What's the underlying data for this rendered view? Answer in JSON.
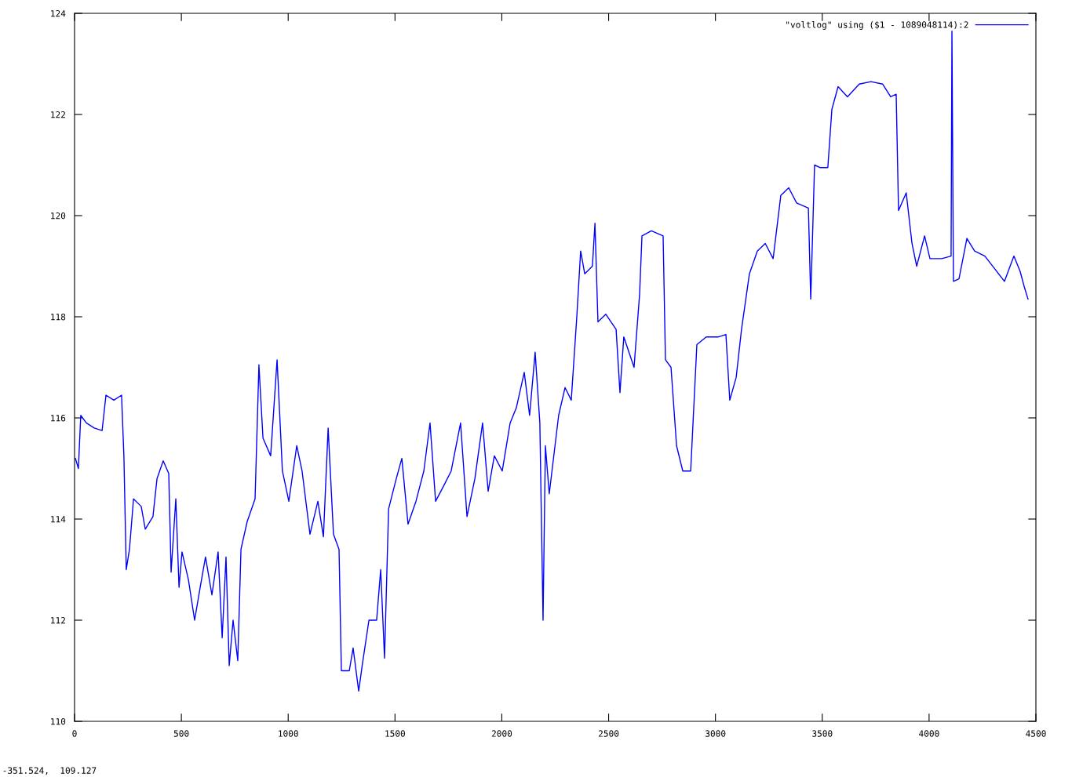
{
  "chart_data": {
    "type": "line",
    "xlim": [
      0,
      4500
    ],
    "ylim": [
      110,
      124
    ],
    "xticks": [
      0,
      500,
      1000,
      1500,
      2000,
      2500,
      3000,
      3500,
      4000,
      4500
    ],
    "yticks": [
      110,
      112,
      114,
      116,
      118,
      120,
      122,
      124
    ],
    "grid": false,
    "legend": "top right",
    "marker": "none",
    "line_style": "solid",
    "annotations": [
      "-351.524,  109.127"
    ],
    "series": [
      {
        "name": "\"voltlog\" using ($1 - 1089048114):2",
        "color": "#0000ff",
        "x": [
          4,
          18,
          29,
          55,
          92,
          129,
          147,
          184,
          220,
          231,
          242,
          257,
          276,
          312,
          331,
          367,
          386,
          415,
          441,
          452,
          474,
          489,
          503,
          533,
          562,
          588,
          613,
          643,
          672,
          691,
          709,
          724,
          742,
          764,
          779,
          808,
          845,
          863,
          882,
          918,
          948,
          973,
          1003,
          1040,
          1065,
          1102,
          1139,
          1165,
          1187,
          1212,
          1238,
          1249,
          1286,
          1304,
          1330,
          1348,
          1378,
          1414,
          1433,
          1451,
          1470,
          1506,
          1532,
          1561,
          1598,
          1635,
          1664,
          1690,
          1727,
          1763,
          1807,
          1837,
          1874,
          1910,
          1936,
          1965,
          2002,
          2039,
          2068,
          2105,
          2130,
          2156,
          2178,
          2193,
          2204,
          2222,
          2266,
          2296,
          2325,
          2351,
          2369,
          2388,
          2424,
          2436,
          2450,
          2487,
          2535,
          2553,
          2571,
          2619,
          2645,
          2656,
          2700,
          2755,
          2766,
          2792,
          2818,
          2847,
          2884,
          2913,
          2957,
          3012,
          3049,
          3067,
          3097,
          3122,
          3159,
          3196,
          3233,
          3270,
          3306,
          3343,
          3380,
          3435,
          3446,
          3464,
          3489,
          3526,
          3545,
          3574,
          3618,
          3673,
          3728,
          3783,
          3820,
          3846,
          3857,
          3893,
          3920,
          3942,
          3979,
          4004,
          4059,
          4103,
          4107,
          4114,
          4140,
          4177,
          4213,
          4261,
          4316,
          4353,
          4397,
          4426,
          4445,
          4463
        ],
        "values": [
          115.2,
          115.0,
          116.05,
          115.9,
          115.8,
          115.75,
          116.45,
          116.35,
          116.45,
          115.25,
          113.0,
          113.4,
          114.4,
          114.25,
          113.8,
          114.05,
          114.8,
          115.15,
          114.9,
          112.95,
          114.4,
          112.65,
          113.35,
          112.8,
          112.0,
          112.65,
          113.25,
          112.5,
          113.35,
          111.65,
          113.25,
          111.1,
          112.0,
          111.2,
          113.4,
          113.95,
          114.4,
          117.05,
          115.6,
          115.25,
          117.15,
          114.95,
          114.35,
          115.45,
          114.95,
          113.7,
          114.35,
          113.65,
          115.8,
          113.7,
          113.4,
          111.0,
          111.0,
          111.45,
          110.6,
          111.15,
          112.0,
          112.0,
          113.0,
          111.25,
          114.2,
          114.8,
          115.2,
          113.9,
          114.35,
          114.95,
          115.9,
          114.35,
          114.65,
          114.95,
          115.9,
          114.05,
          114.8,
          115.9,
          114.55,
          115.25,
          114.95,
          115.9,
          116.2,
          116.9,
          116.05,
          117.3,
          115.9,
          112.0,
          115.45,
          114.5,
          116.05,
          116.6,
          116.35,
          118.0,
          119.3,
          118.85,
          119.0,
          119.85,
          117.9,
          118.05,
          117.75,
          116.5,
          117.6,
          117.0,
          118.45,
          119.6,
          119.7,
          119.6,
          117.15,
          117.0,
          115.45,
          114.95,
          114.95,
          117.45,
          117.6,
          117.6,
          117.65,
          116.35,
          116.8,
          117.75,
          118.85,
          119.3,
          119.45,
          119.15,
          120.4,
          120.55,
          120.25,
          120.15,
          118.35,
          121.0,
          120.95,
          120.95,
          122.1,
          122.55,
          122.35,
          122.6,
          122.65,
          122.6,
          122.35,
          122.4,
          120.1,
          120.45,
          119.45,
          119.0,
          119.6,
          119.15,
          119.15,
          119.2,
          123.65,
          118.7,
          118.75,
          119.55,
          119.3,
          119.2,
          118.9,
          118.7,
          119.2,
          118.9,
          118.6,
          118.35
        ]
      }
    ]
  }
}
